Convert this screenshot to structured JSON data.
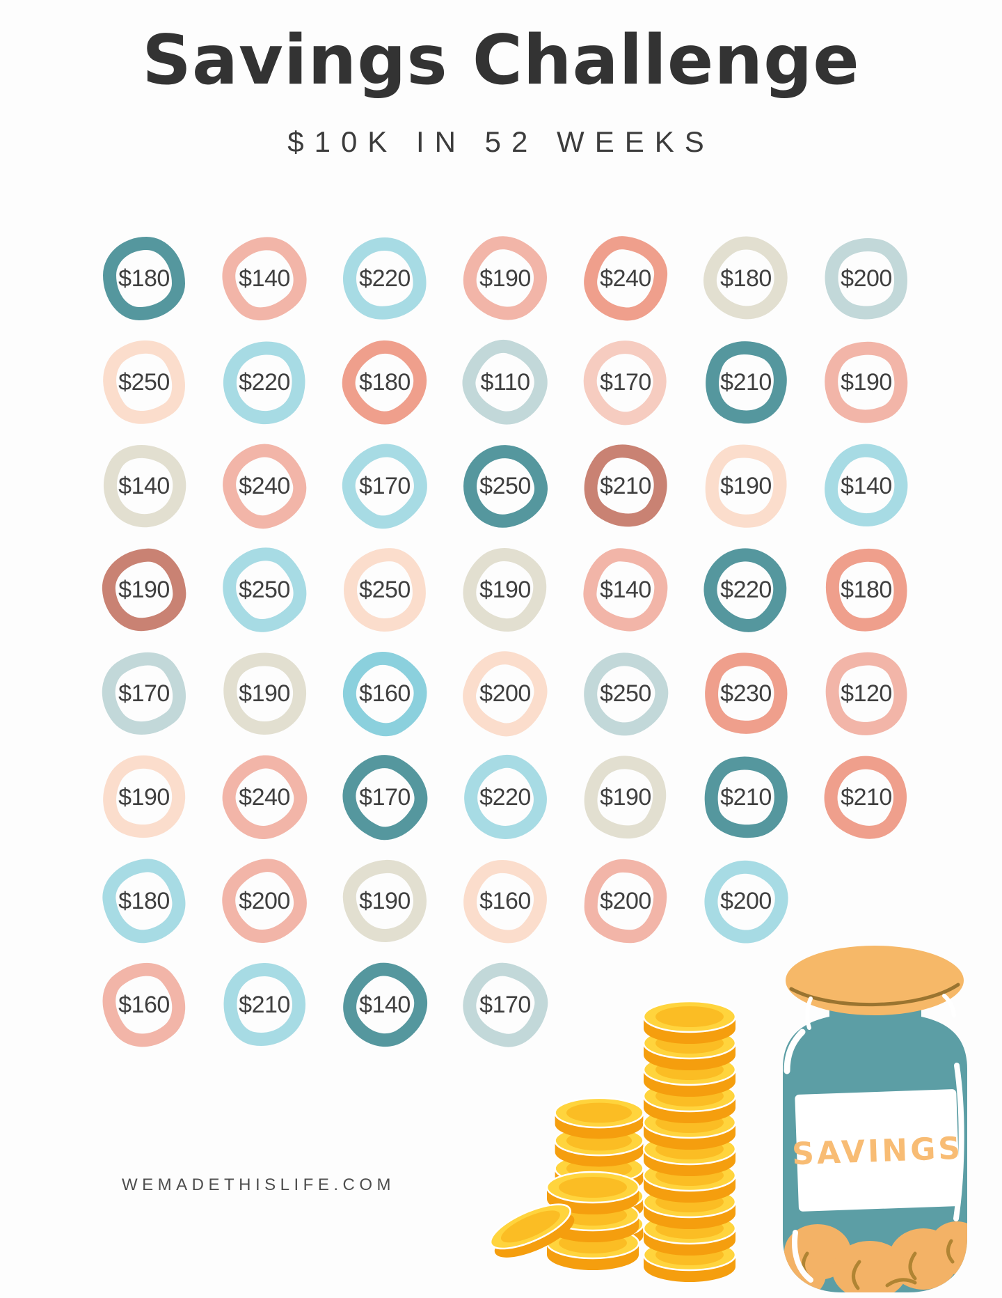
{
  "page": {
    "title": "Savings Challenge",
    "subtitle": "$10K IN 52 WEEKS",
    "footer": "WEMADETHISLIFE.COM"
  },
  "jar": {
    "label": "SAVINGS"
  },
  "palette": {
    "teal": "#55979E",
    "salmon": "#F2B5A8",
    "coral": "#EF9F8C",
    "dustyrose": "#C98273",
    "lightblue": "#A7DBE4",
    "cyan": "#8BD0DD",
    "palebluegray": "#C2D8D9",
    "beige": "#E2DFD0",
    "palepeach": "#FBDDCC",
    "lightpink": "#F6CCC0"
  },
  "colors": {
    "title_ink": "#333333",
    "amount_ink": "#3F3F3F",
    "footer_ink": "#4D4D4D",
    "jar_glass": "#5C9EA5",
    "jar_lid": "#F6B868",
    "jar_label_text": "#F8BC74",
    "coin_gold": "#FFD43D",
    "coin_side": "#F59E0E"
  },
  "grid": {
    "total_weeks": 52,
    "rows": [
      [
        {
          "amount": "$180",
          "color": "teal"
        },
        {
          "amount": "$140",
          "color": "salmon"
        },
        {
          "amount": "$220",
          "color": "lightblue"
        },
        {
          "amount": "$190",
          "color": "salmon"
        },
        {
          "amount": "$240",
          "color": "coral"
        },
        {
          "amount": "$180",
          "color": "beige"
        },
        {
          "amount": "$200",
          "color": "palebluegray"
        }
      ],
      [
        {
          "amount": "$250",
          "color": "palepeach"
        },
        {
          "amount": "$220",
          "color": "lightblue"
        },
        {
          "amount": "$180",
          "color": "coral"
        },
        {
          "amount": "$110",
          "color": "palebluegray"
        },
        {
          "amount": "$170",
          "color": "lightpink"
        },
        {
          "amount": "$210",
          "color": "teal"
        },
        {
          "amount": "$190",
          "color": "salmon"
        }
      ],
      [
        {
          "amount": "$140",
          "color": "beige"
        },
        {
          "amount": "$240",
          "color": "salmon"
        },
        {
          "amount": "$170",
          "color": "lightblue"
        },
        {
          "amount": "$250",
          "color": "teal"
        },
        {
          "amount": "$210",
          "color": "dustyrose"
        },
        {
          "amount": "$190",
          "color": "palepeach"
        },
        {
          "amount": "$140",
          "color": "lightblue"
        }
      ],
      [
        {
          "amount": "$190",
          "color": "dustyrose"
        },
        {
          "amount": "$250",
          "color": "lightblue"
        },
        {
          "amount": "$250",
          "color": "palepeach"
        },
        {
          "amount": "$190",
          "color": "beige"
        },
        {
          "amount": "$140",
          "color": "salmon"
        },
        {
          "amount": "$220",
          "color": "teal"
        },
        {
          "amount": "$180",
          "color": "coral"
        }
      ],
      [
        {
          "amount": "$170",
          "color": "palebluegray"
        },
        {
          "amount": "$190",
          "color": "beige"
        },
        {
          "amount": "$160",
          "color": "cyan"
        },
        {
          "amount": "$200",
          "color": "palepeach"
        },
        {
          "amount": "$250",
          "color": "palebluegray"
        },
        {
          "amount": "$230",
          "color": "coral"
        },
        {
          "amount": "$120",
          "color": "salmon"
        }
      ],
      [
        {
          "amount": "$190",
          "color": "palepeach"
        },
        {
          "amount": "$240",
          "color": "salmon"
        },
        {
          "amount": "$170",
          "color": "teal"
        },
        {
          "amount": "$220",
          "color": "lightblue"
        },
        {
          "amount": "$190",
          "color": "beige"
        },
        {
          "amount": "$210",
          "color": "teal"
        },
        {
          "amount": "$210",
          "color": "coral"
        }
      ],
      [
        {
          "amount": "$180",
          "color": "lightblue"
        },
        {
          "amount": "$200",
          "color": "salmon"
        },
        {
          "amount": "$190",
          "color": "beige"
        },
        {
          "amount": "$160",
          "color": "palepeach"
        },
        {
          "amount": "$200",
          "color": "salmon"
        },
        {
          "amount": "$200",
          "color": "lightblue"
        }
      ],
      [
        {
          "amount": "$160",
          "color": "salmon"
        },
        {
          "amount": "$210",
          "color": "lightblue"
        },
        {
          "amount": "$140",
          "color": "teal"
        },
        {
          "amount": "$170",
          "color": "palebluegray"
        }
      ]
    ]
  }
}
